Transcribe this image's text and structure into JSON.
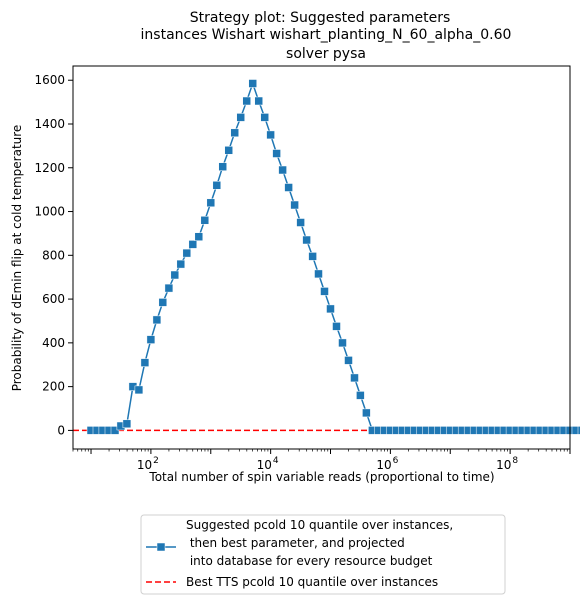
{
  "chart_data": {
    "type": "line",
    "title_lines": [
      "Strategy plot: Suggested parameters",
      "instances Wishart wishart_planting_N_60_alpha_0.60",
      "solver pysa"
    ],
    "xlabel": "Total number of spin variable reads (proportional to time)",
    "ylabel": "Probability of dEmin flip at cold temperature",
    "x_scale": "log",
    "xlim": [
      5,
      1000000000
    ],
    "ylim": [
      -85,
      1665
    ],
    "x_ticks": [
      {
        "value": 100,
        "base": "10",
        "exp": "2"
      },
      {
        "value": 10000,
        "base": "10",
        "exp": "4"
      },
      {
        "value": 1000000,
        "base": "10",
        "exp": "6"
      },
      {
        "value": 100000000,
        "base": "10",
        "exp": "8"
      }
    ],
    "y_ticks": [
      0,
      200,
      400,
      600,
      800,
      1000,
      1200,
      1400,
      1600
    ],
    "grid": false,
    "legend_placement": "below-chart",
    "colors": {
      "series": "#1f77b4",
      "reference": "#ff0000"
    },
    "series": [
      {
        "name": "Suggested pcold 10 quantile over instances,\n then best parameter, and projected\n into database for every resource budget",
        "legend_lines": [
          "Suggested pcold 10 quantile over instances,",
          " then best parameter, and projected",
          " into database for every resource budget"
        ],
        "style": "line-square-marker",
        "x": [
          10,
          12.6,
          15.8,
          20,
          25.1,
          31.6,
          39.8,
          50.1,
          63.1,
          79.4,
          100,
          126,
          158,
          200,
          251,
          316,
          398,
          501,
          631,
          794,
          1000,
          1259,
          1585,
          1995,
          2512,
          3162,
          3981,
          5012,
          6310,
          7943,
          10000,
          12589,
          15849,
          19953,
          25119,
          31623,
          39811,
          50119,
          63096,
          79433,
          100000,
          125893,
          158489,
          199526,
          251189,
          316228,
          398107,
          501187,
          630957,
          794328,
          1000000,
          1258925,
          1584893,
          1995262,
          2511886,
          3162278,
          3981072,
          5011872,
          6309573,
          7943282,
          10000000,
          12589254,
          15848932,
          19952623,
          25118864,
          31622777,
          39810717,
          50118723,
          63095734,
          79432823,
          100000000,
          125892541,
          158489319,
          199526231,
          251188643,
          316227766,
          398107171,
          501187234,
          630957344,
          794328235,
          1000000000,
          1258925412,
          1584893192,
          1995262315
        ],
        "y": [
          0,
          0,
          0,
          0,
          0,
          20,
          30,
          200,
          185,
          310,
          415,
          505,
          585,
          650,
          710,
          760,
          810,
          850,
          885,
          960,
          1040,
          1120,
          1205,
          1280,
          1360,
          1430,
          1505,
          1585,
          1505,
          1430,
          1350,
          1265,
          1190,
          1110,
          1030,
          950,
          870,
          795,
          715,
          635,
          555,
          475,
          400,
          320,
          240,
          160,
          80,
          0,
          0,
          0,
          0,
          0,
          0,
          0,
          0,
          0,
          0,
          0,
          0,
          0,
          0,
          0,
          0,
          0,
          0,
          0,
          0,
          0,
          0,
          0,
          0,
          0,
          0,
          0,
          0,
          0,
          0,
          0,
          0,
          0,
          0,
          0,
          0,
          0
        ]
      },
      {
        "name": "Best TTS pcold 10 quantile over instances",
        "style": "dashed-line",
        "y_constant": 0
      }
    ]
  }
}
